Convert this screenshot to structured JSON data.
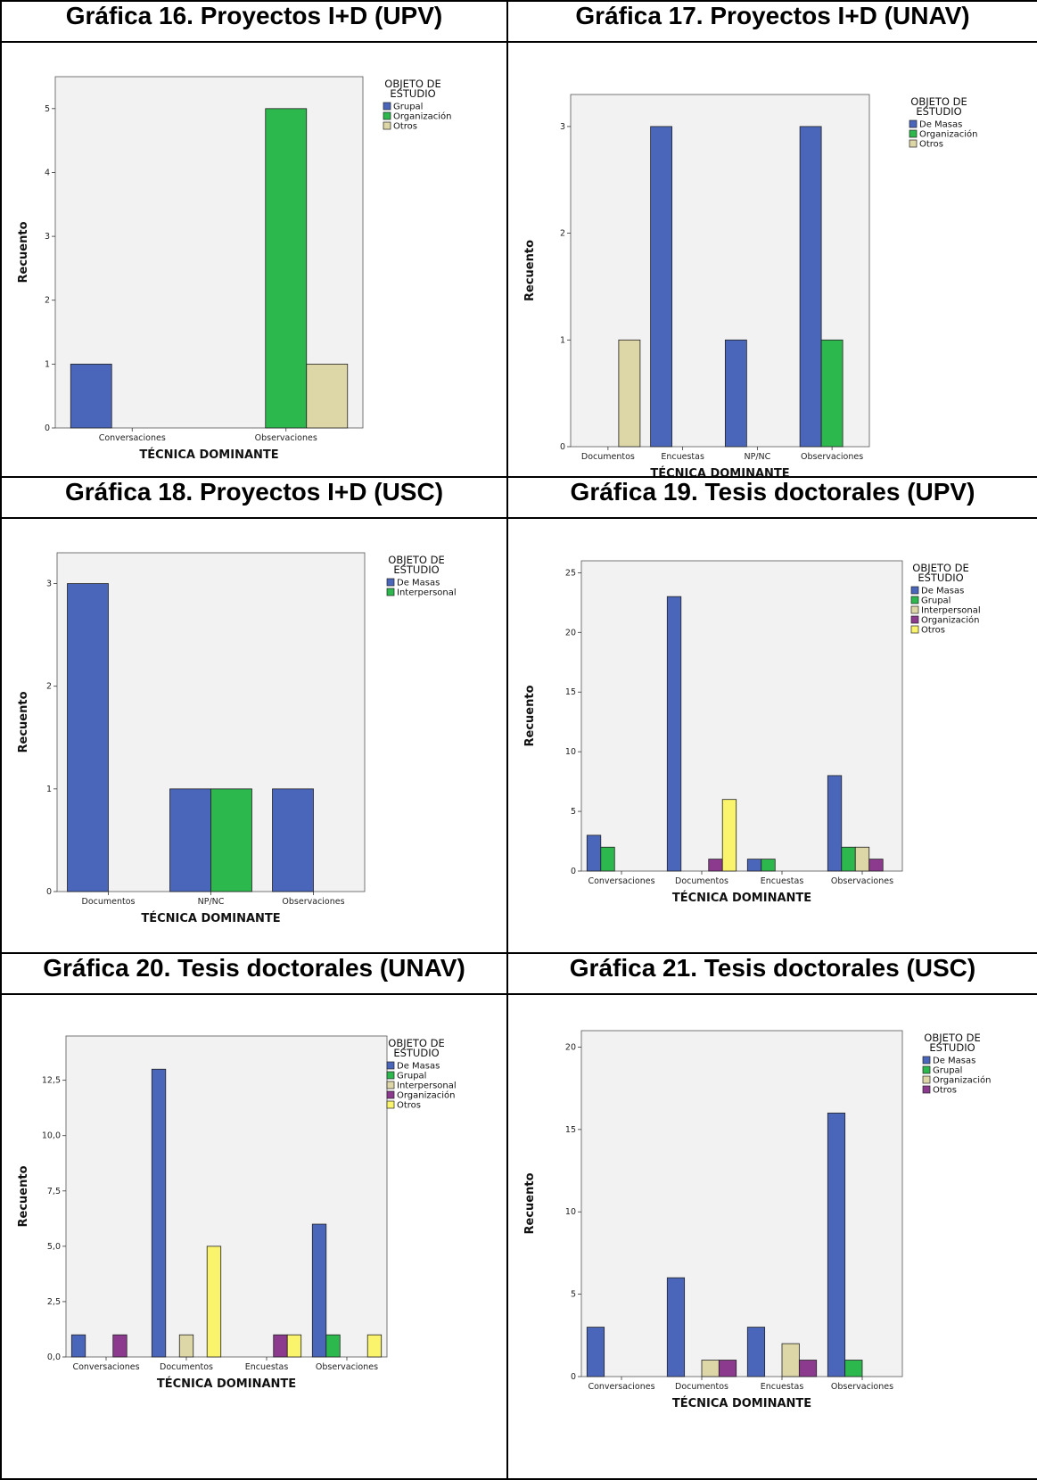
{
  "colors": {
    "De Masas": "#4a66bb",
    "Grupal": "#2db84d",
    "Interpersonal": "#ddd6a6",
    "Organización": "#8b3a8e",
    "Otros": "#faf36c",
    "plot_bg": "#f2f2f2"
  },
  "chart_data": [
    {
      "type": "bar",
      "title": "Gráfica 16. Proyectos I+D (UPV)",
      "xlabel": "TÉCNICA DOMINANTE",
      "ylabel": "Recuento",
      "legend_title": "OBJETO DE ESTUDIO",
      "legend_position": "right",
      "ylim": [
        0,
        5.5
      ],
      "yticks": [
        "0",
        "1",
        "2",
        "3",
        "4",
        "5"
      ],
      "categories": [
        "Conversaciones",
        "Observaciones"
      ],
      "series": [
        {
          "name": "Grupal",
          "color": "#4a66bb",
          "values": [
            1,
            0
          ]
        },
        {
          "name": "Organización",
          "color": "#2db84d",
          "values": [
            0,
            5
          ]
        },
        {
          "name": "Otros",
          "color": "#ddd6a6",
          "values": [
            0,
            1
          ]
        }
      ]
    },
    {
      "type": "bar",
      "title": "Gráfica 17. Proyectos I+D (UNAV)",
      "xlabel": "TÉCNICA DOMINANTE",
      "ylabel": "Recuento",
      "legend_title": "OBJETO DE ESTUDIO",
      "legend_position": "right",
      "ylim": [
        0,
        3.3
      ],
      "yticks": [
        "0",
        "1",
        "2",
        "3"
      ],
      "categories": [
        "Documentos",
        "Encuestas",
        "NP/NC",
        "Observaciones"
      ],
      "series": [
        {
          "name": "De Masas",
          "color": "#4a66bb",
          "values": [
            0,
            3,
            1,
            3
          ]
        },
        {
          "name": "Organización",
          "color": "#2db84d",
          "values": [
            0,
            0,
            0,
            1
          ]
        },
        {
          "name": "Otros",
          "color": "#ddd6a6",
          "values": [
            1,
            0,
            0,
            0
          ]
        }
      ]
    },
    {
      "type": "bar",
      "title": "Gráfica 18. Proyectos I+D (USC)",
      "xlabel": "TÉCNICA DOMINANTE",
      "ylabel": "Recuento",
      "legend_title": "OBJETO DE ESTUDIO",
      "legend_position": "right",
      "ylim": [
        0,
        3.3
      ],
      "yticks": [
        "0",
        "1",
        "2",
        "3"
      ],
      "categories": [
        "Documentos",
        "NP/NC",
        "Observaciones"
      ],
      "series": [
        {
          "name": "De Masas",
          "color": "#4a66bb",
          "values": [
            3,
            1,
            1
          ]
        },
        {
          "name": "Interpersonal",
          "color": "#2db84d",
          "values": [
            0,
            1,
            0
          ]
        }
      ]
    },
    {
      "type": "bar",
      "title": "Gráfica 19. Tesis doctorales (UPV)",
      "xlabel": "TÉCNICA DOMINANTE",
      "ylabel": "Recuento",
      "legend_title": "OBJETO DE ESTUDIO",
      "legend_position": "right",
      "ylim": [
        0,
        26
      ],
      "yticks": [
        "0",
        "5",
        "10",
        "15",
        "20",
        "25"
      ],
      "categories": [
        "Conversaciones",
        "Documentos",
        "Encuestas",
        "Observaciones"
      ],
      "series": [
        {
          "name": "De Masas",
          "color": "#4a66bb",
          "values": [
            3,
            23,
            1,
            8
          ]
        },
        {
          "name": "Grupal",
          "color": "#2db84d",
          "values": [
            2,
            0,
            1,
            2
          ]
        },
        {
          "name": "Interpersonal",
          "color": "#ddd6a6",
          "values": [
            0,
            0,
            0,
            2
          ]
        },
        {
          "name": "Organización",
          "color": "#8b3a8e",
          "values": [
            0,
            1,
            0,
            1
          ]
        },
        {
          "name": "Otros",
          "color": "#faf36c",
          "values": [
            0,
            6,
            0,
            0
          ]
        }
      ]
    },
    {
      "type": "bar",
      "title": "Gráfica 20. Tesis doctorales (UNAV)",
      "xlabel": "TÉCNICA DOMINANTE",
      "ylabel": "Recuento",
      "legend_title": "OBJETO DE ESTUDIO",
      "legend_position": "right",
      "ylim": [
        0,
        14.5
      ],
      "yticks": [
        "0,0",
        "2,5",
        "5,0",
        "7,5",
        "10,0",
        "12,5"
      ],
      "categories": [
        "Conversaciones",
        "Documentos",
        "Encuestas",
        "Observaciones"
      ],
      "series": [
        {
          "name": "De Masas",
          "color": "#4a66bb",
          "values": [
            1,
            13,
            0,
            6
          ]
        },
        {
          "name": "Grupal",
          "color": "#2db84d",
          "values": [
            0,
            0,
            0,
            1
          ]
        },
        {
          "name": "Interpersonal",
          "color": "#ddd6a6",
          "values": [
            0,
            1,
            0,
            0
          ]
        },
        {
          "name": "Organización",
          "color": "#8b3a8e",
          "values": [
            1,
            0,
            1,
            0
          ]
        },
        {
          "name": "Otros",
          "color": "#faf36c",
          "values": [
            0,
            5,
            1,
            1
          ]
        }
      ]
    },
    {
      "type": "bar",
      "title": "Gráfica 21. Tesis doctorales (USC)",
      "xlabel": "TÉCNICA DOMINANTE",
      "ylabel": "Recuento",
      "legend_title": "OBJETO DE ESTUDIO",
      "legend_position": "right",
      "ylim": [
        0,
        21
      ],
      "yticks": [
        "0",
        "5",
        "10",
        "15",
        "20"
      ],
      "categories": [
        "Conversaciones",
        "Documentos",
        "Encuestas",
        "Observaciones"
      ],
      "series": [
        {
          "name": "De Masas",
          "color": "#4a66bb",
          "values": [
            3,
            6,
            3,
            16
          ]
        },
        {
          "name": "Grupal",
          "color": "#2db84d",
          "values": [
            0,
            0,
            0,
            1
          ]
        },
        {
          "name": "Organización",
          "color": "#ddd6a6",
          "values": [
            0,
            1,
            2,
            0
          ]
        },
        {
          "name": "Otros",
          "color": "#8b3a8e",
          "values": [
            0,
            1,
            1,
            0
          ]
        }
      ]
    }
  ]
}
